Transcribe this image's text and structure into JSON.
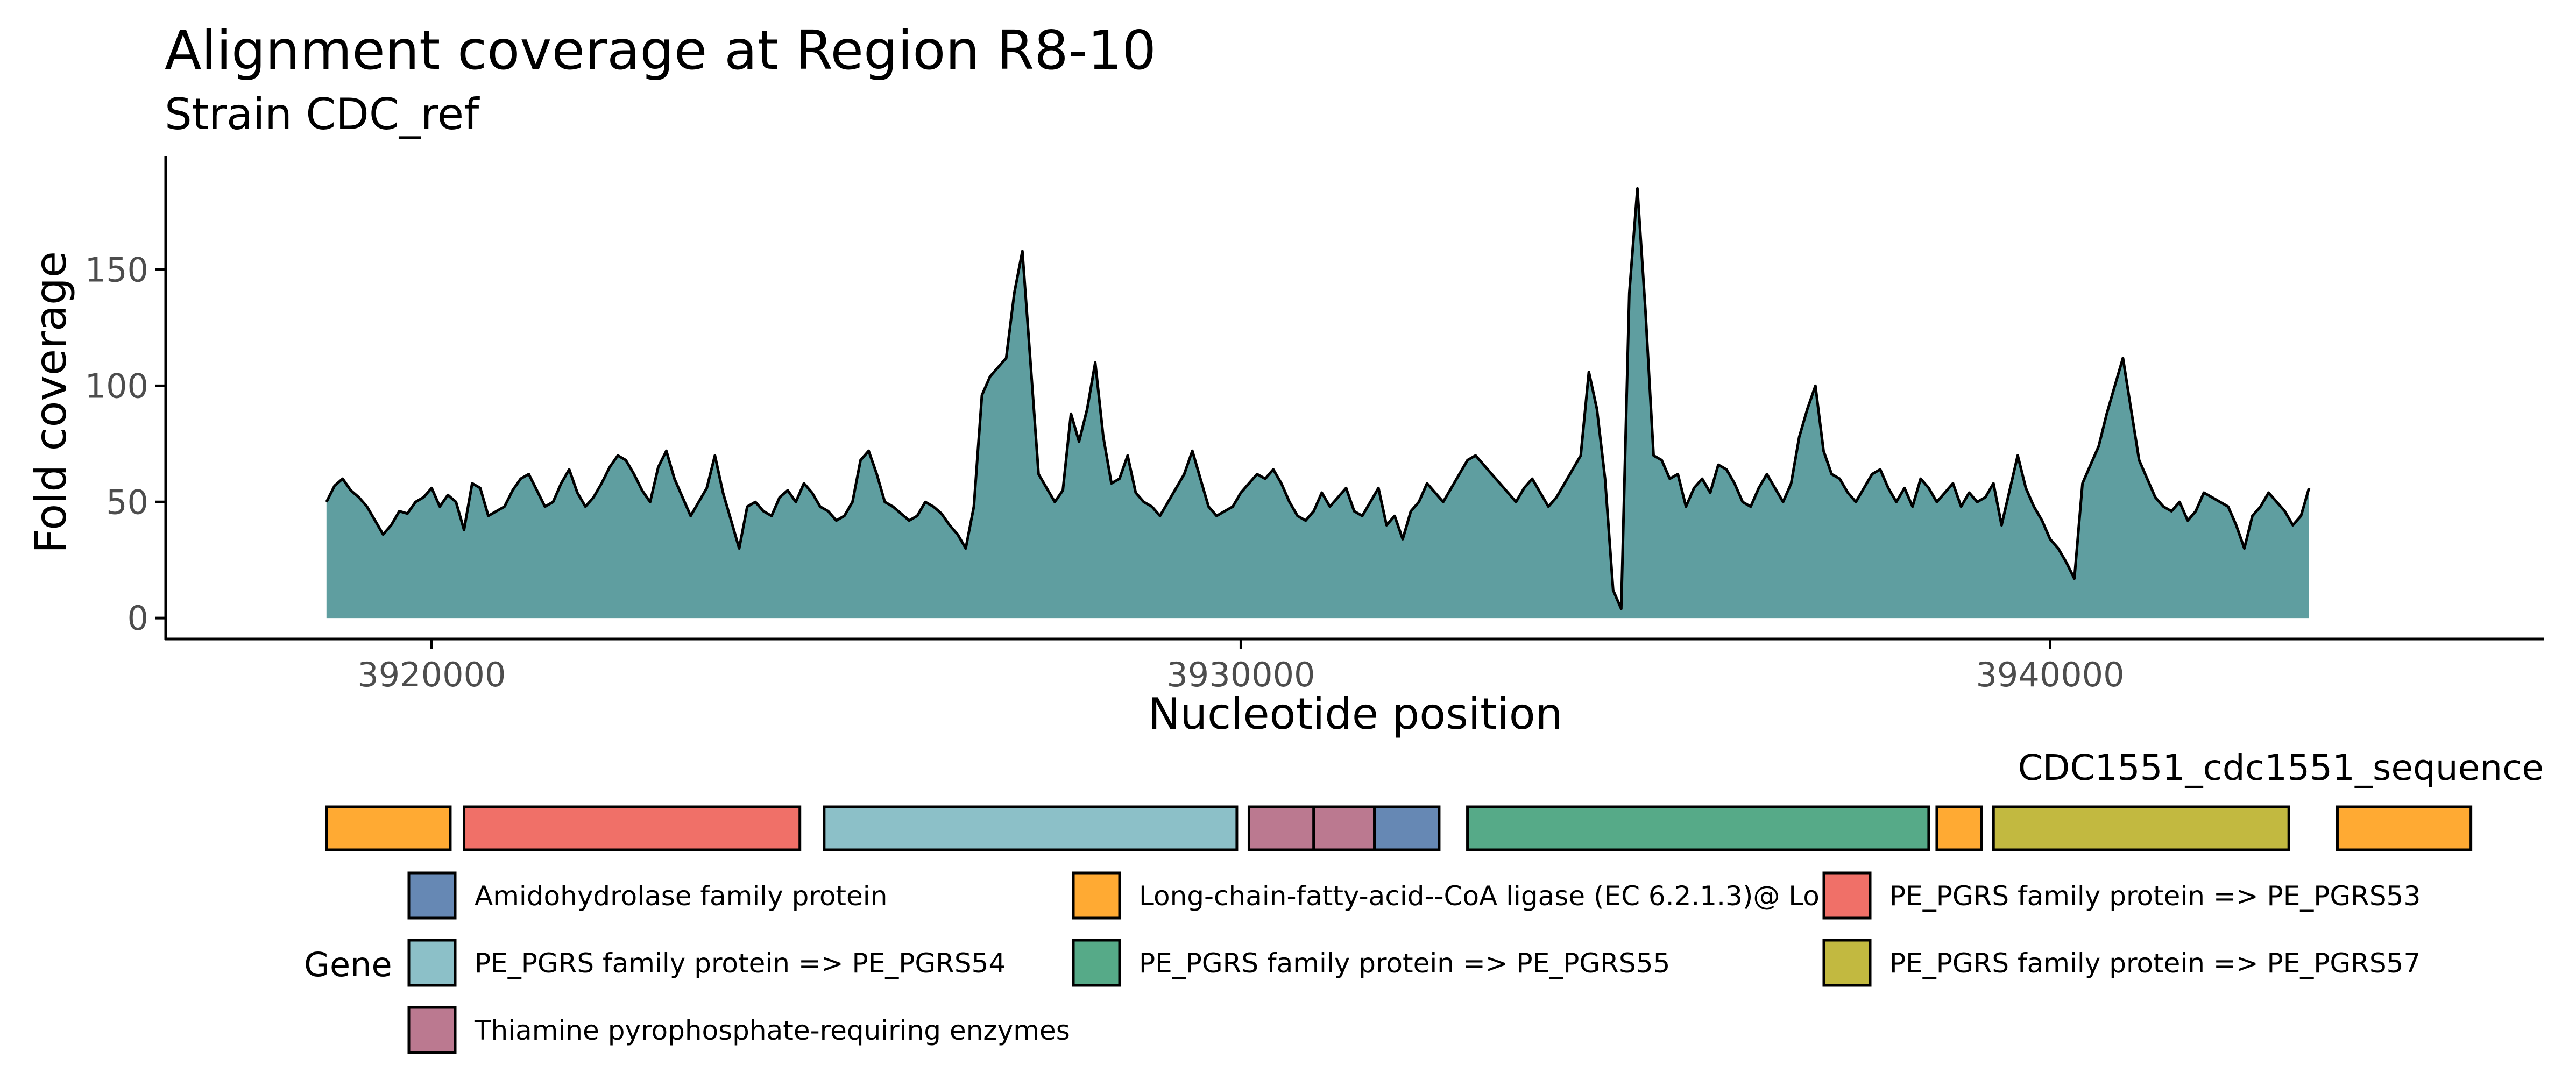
{
  "chart_data": {
    "type": "area",
    "title": "Alignment coverage at Region R8-10",
    "subtitle": "Strain CDC_ref",
    "xlabel": "Nucleotide position",
    "ylabel": "Fold coverage",
    "xlim": [
      3916700,
      3946100
    ],
    "ylim": [
      -9,
      199
    ],
    "x_ticks": [
      3920000,
      3930000,
      3940000
    ],
    "x_tick_labels": [
      "3920000",
      "3930000",
      "3940000"
    ],
    "y_ticks": [
      0,
      50,
      100,
      150
    ],
    "y_tick_labels": [
      "0",
      "50",
      "100",
      "150"
    ],
    "grid": false,
    "colors": {
      "fill": "#5f9ea0",
      "line": "#000000",
      "axis": "#000000",
      "tick_label": "#4d4d4d"
    },
    "series": [
      {
        "x_start": 3918700,
        "x_step": 100,
        "values": [
          50,
          57,
          60,
          55,
          52,
          48,
          42,
          36,
          40,
          46,
          45,
          50,
          52,
          56,
          48,
          53,
          50,
          38,
          58,
          56,
          44,
          46,
          48,
          55,
          60,
          62,
          55,
          48,
          50,
          58,
          64,
          54,
          48,
          52,
          58,
          65,
          70,
          68,
          62,
          55,
          50,
          65,
          72,
          60,
          52,
          44,
          50,
          56,
          70,
          54,
          42,
          30,
          48,
          50,
          46,
          44,
          52,
          55,
          50,
          58,
          54,
          48,
          46,
          42,
          44,
          50,
          68,
          72,
          62,
          50,
          48,
          45,
          42,
          44,
          50,
          48,
          45,
          40,
          36,
          30,
          48,
          96,
          104,
          108,
          112,
          140,
          158,
          110,
          62,
          56,
          50,
          55,
          88,
          76,
          90,
          110,
          78,
          58,
          60,
          70,
          54,
          50,
          48,
          44,
          50,
          56,
          62,
          72,
          60,
          48,
          44,
          46,
          48,
          54,
          58,
          62,
          60,
          64,
          58,
          50,
          44,
          42,
          46,
          54,
          48,
          52,
          56,
          46,
          44,
          50,
          56,
          40,
          44,
          34,
          46,
          50,
          58,
          54,
          50,
          56,
          62,
          68,
          70,
          66,
          62,
          58,
          54,
          50,
          56,
          60,
          54,
          48,
          52,
          58,
          64,
          70,
          106,
          90,
          60,
          12,
          4,
          140,
          185,
          132,
          70,
          68,
          60,
          62,
          48,
          56,
          60,
          54,
          66,
          64,
          58,
          50,
          48,
          56,
          62,
          56,
          50,
          58,
          78,
          90,
          100,
          72,
          62,
          60,
          54,
          50,
          56,
          62,
          64,
          56,
          50,
          56,
          48,
          60,
          56,
          50,
          54,
          58,
          48,
          54,
          50,
          52,
          58,
          40,
          55,
          70,
          56,
          48,
          42,
          34,
          30,
          24,
          17,
          58,
          66,
          74,
          88,
          100,
          112,
          90,
          68,
          60,
          52,
          48,
          46,
          50,
          42,
          46,
          54,
          52,
          50,
          48,
          40,
          30,
          44,
          48,
          54,
          50,
          46,
          40,
          44,
          56
        ]
      }
    ],
    "gene_track": {
      "title": "CDC1551_cdc1551_sequence",
      "genes": [
        {
          "start": 3918700,
          "end": 3920230,
          "color": "#ffaa33"
        },
        {
          "start": 3920400,
          "end": 3924550,
          "color": "#f07068"
        },
        {
          "start": 3924850,
          "end": 3929950,
          "color": "#8cc0c8"
        },
        {
          "start": 3930100,
          "end": 3930900,
          "color": "#bb7990"
        },
        {
          "start": 3930900,
          "end": 3931650,
          "color": "#bb7990"
        },
        {
          "start": 3931650,
          "end": 3932450,
          "color": "#6688b4"
        },
        {
          "start": 3932800,
          "end": 3938500,
          "color": "#56aa88"
        },
        {
          "start": 3938600,
          "end": 3939150,
          "color": "#ffaa33"
        },
        {
          "start": 3939300,
          "end": 3942950,
          "color": "#c2b940"
        },
        {
          "start": 3943550,
          "end": 3945200,
          "color": "#ffaa33"
        }
      ]
    },
    "legend": {
      "title": "Gene",
      "placement": "bottom",
      "entries": [
        {
          "label": "Amidohydrolase family protein",
          "color": "#6688b4"
        },
        {
          "label": "Long-chain-fatty-acid--CoA ligase (EC 6.2.1.3)@ Lo",
          "color": "#ffaa33"
        },
        {
          "label": "PE_PGRS family protein => PE_PGRS53",
          "color": "#f07068"
        },
        {
          "label": "PE_PGRS family protein => PE_PGRS54",
          "color": "#8cc0c8"
        },
        {
          "label": "PE_PGRS family protein => PE_PGRS55",
          "color": "#56aa88"
        },
        {
          "label": "PE_PGRS family protein => PE_PGRS57",
          "color": "#c2b940"
        },
        {
          "label": "Thiamine pyrophosphate-requiring enzymes",
          "color": "#bb7990"
        }
      ]
    }
  }
}
